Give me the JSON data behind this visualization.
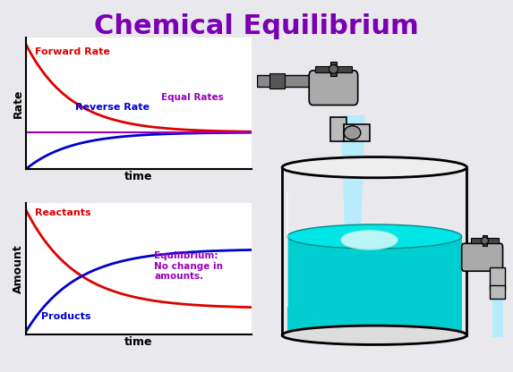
{
  "title": "Chemical Equilibrium",
  "title_color": "#7B00B4",
  "title_fontsize": 22,
  "bg_color": "#E9E9ED",
  "graph_bg": "#FFFFFF",
  "top_graph": {
    "xlabel": "time",
    "ylabel": "Rate",
    "forward_label": "Forward Rate",
    "reverse_label": "Reverse Rate",
    "equal_label": "Equal Rates",
    "forward_color": "#DD0000",
    "reverse_color": "#0000CC",
    "equal_color": "#9900BB"
  },
  "bottom_graph": {
    "xlabel": "time",
    "ylabel": "Amount",
    "reactants_label": "Reactants",
    "products_label": "Products",
    "equil_label": "Equilibrium:\nNo change in\namounts.",
    "reactants_color": "#DD0000",
    "products_color": "#0000CC",
    "equil_color": "#9900BB"
  },
  "beaker": {
    "water_color": "#00CED1",
    "water_color2": "#20DADA",
    "stream_color": "#AAEEFF",
    "ripple_color": "#FFFFFF",
    "outline_color": "#111111"
  }
}
